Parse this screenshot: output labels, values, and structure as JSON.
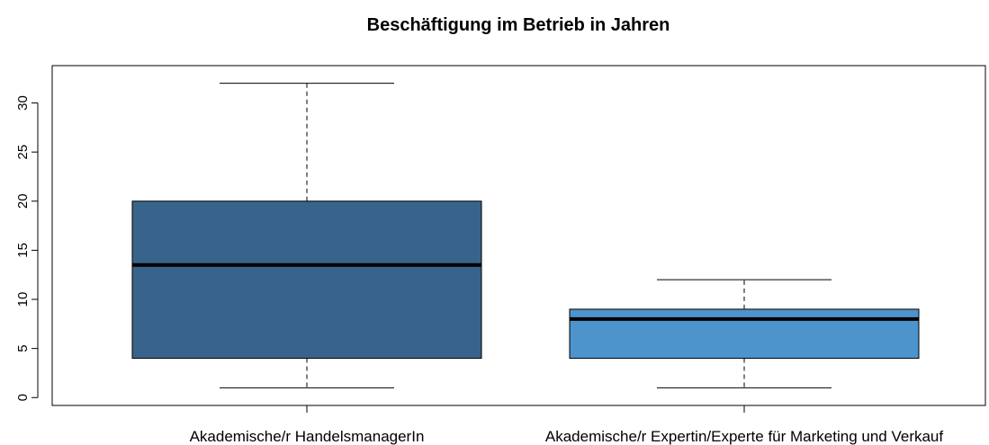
{
  "chart_data": {
    "type": "boxplot",
    "title": "Beschäftigung im Betrieb in Jahren",
    "categories": [
      "Akademische/r HandelsmanagerIn",
      "Akademische/r Expertin/Experte für Marketing und Verkauf"
    ],
    "boxes": [
      {
        "whislo": 1,
        "q1": 4,
        "med": 13.5,
        "q3": 20,
        "whishi": 32
      },
      {
        "whislo": 1,
        "q1": 4,
        "med": 8,
        "q3": 9,
        "whishi": 12
      }
    ],
    "colors": [
      "#38648b",
      "#4d93cc"
    ],
    "ylim": [
      -0.8,
      33.8
    ],
    "yticks": [
      0,
      5,
      10,
      15,
      20,
      25,
      30
    ]
  }
}
